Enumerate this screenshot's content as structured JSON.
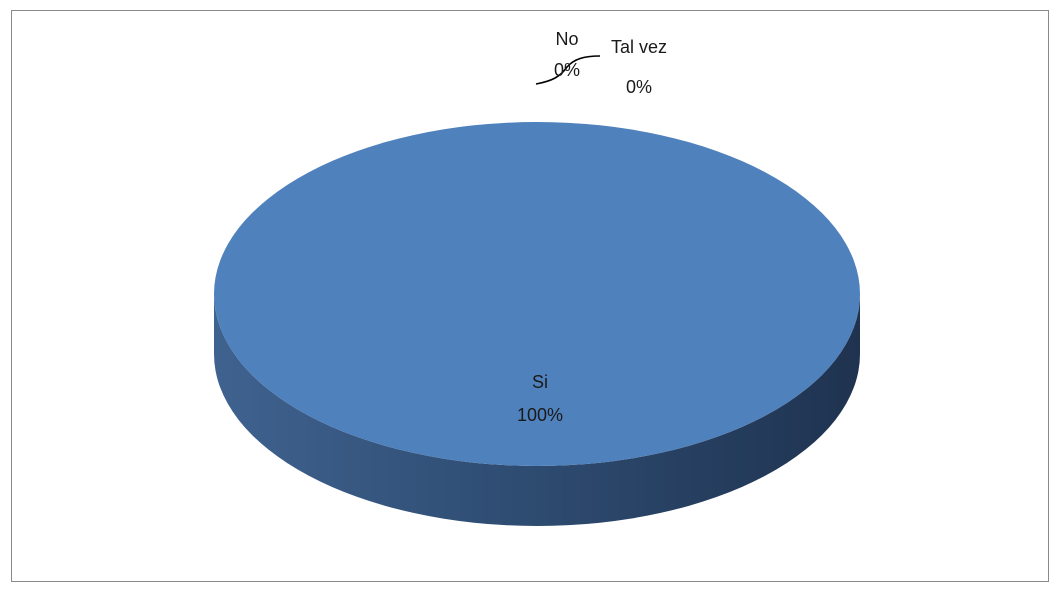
{
  "chart_data": {
    "type": "pie",
    "style": "3d",
    "categories": [
      "Si",
      "No",
      "Tal vez"
    ],
    "values": [
      100,
      0,
      0
    ],
    "unit": "%",
    "data_labels": [
      {
        "category": "Si",
        "value": "100%"
      },
      {
        "category": "No",
        "value": "0%"
      },
      {
        "category": "Tal vez",
        "value": "0%"
      }
    ],
    "legend": "none",
    "colors": {
      "Si": "#4f81bd",
      "side_dark": "#1f3350",
      "side_light": "#3f628f",
      "leader_line": "#000000"
    }
  }
}
